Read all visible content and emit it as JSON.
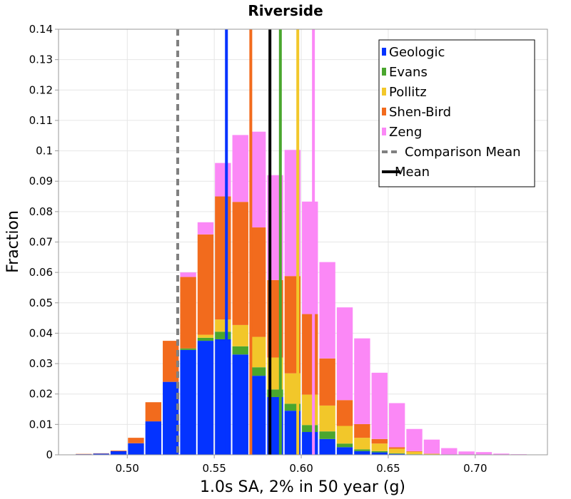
{
  "chart_data": {
    "type": "bar",
    "stacked": true,
    "title": "Riverside",
    "xlabel": "1.0s SA, 2% in 50 year (g)",
    "ylabel": "Fraction",
    "xlim": [
      0.4605,
      0.7415
    ],
    "ylim": [
      0,
      0.14
    ],
    "grid": true,
    "bin_width": 0.01,
    "x": [
      0.475,
      0.485,
      0.495,
      0.505,
      0.515,
      0.525,
      0.535,
      0.545,
      0.555,
      0.565,
      0.575,
      0.585,
      0.595,
      0.605,
      0.615,
      0.625,
      0.635,
      0.645,
      0.655,
      0.665,
      0.675,
      0.685,
      0.695,
      0.705,
      0.715,
      0.725
    ],
    "xticks": [
      0.5,
      0.55,
      0.6,
      0.65,
      0.7
    ],
    "xtick_labels": [
      "0.50",
      "0.55",
      "0.60",
      "0.65",
      "0.70"
    ],
    "yticks": [
      0,
      0.01,
      0.02,
      0.03,
      0.04,
      0.05,
      0.06,
      0.07,
      0.08,
      0.09,
      0.1,
      0.11,
      0.12,
      0.13,
      0.14
    ],
    "ytick_labels": [
      "0",
      "0.01",
      "0.02",
      "0.03",
      "0.04",
      "0.05",
      "0.06",
      "0.07",
      "0.08",
      "0.09",
      "0.1",
      "0.11",
      "0.12",
      "0.13",
      "0.14"
    ],
    "series": [
      {
        "name": "Geologic",
        "color": "#0433ff",
        "values": [
          0.0002,
          0.0004,
          0.0012,
          0.0038,
          0.011,
          0.024,
          0.0345,
          0.0375,
          0.038,
          0.033,
          0.026,
          0.019,
          0.0145,
          0.0075,
          0.0052,
          0.0025,
          0.0012,
          0.0008,
          0.0003,
          0.0001,
          0,
          0,
          0,
          0,
          0,
          0
        ]
      },
      {
        "name": "Evans",
        "color": "#4aa62e",
        "values": [
          0,
          0,
          0,
          0,
          0,
          0,
          0.0005,
          0.001,
          0.0025,
          0.0027,
          0.0028,
          0.0025,
          0.0023,
          0.0023,
          0.0025,
          0.0012,
          0.0006,
          0.0004,
          0.0002,
          0.0001,
          0,
          0,
          0,
          0,
          0,
          0
        ]
      },
      {
        "name": "Pollitz",
        "color": "#f2c72a",
        "values": [
          0,
          0,
          0,
          0,
          0,
          0,
          0,
          0.001,
          0.004,
          0.007,
          0.01,
          0.0105,
          0.01,
          0.01,
          0.0085,
          0.0058,
          0.0038,
          0.0025,
          0.0015,
          0.0008,
          0.0003,
          0.0001,
          0,
          0,
          0,
          0
        ]
      },
      {
        "name": "Shen-Bird",
        "color": "#f26b1d",
        "values": [
          0.0001,
          0.0001,
          0.0002,
          0.0018,
          0.0063,
          0.0135,
          0.0235,
          0.033,
          0.0405,
          0.0405,
          0.036,
          0.0255,
          0.032,
          0.0265,
          0.0155,
          0.0085,
          0.0045,
          0.0015,
          0.0005,
          0.0002,
          0.0001,
          0,
          0,
          0,
          0,
          0
        ]
      },
      {
        "name": "Zeng",
        "color": "#fb88f6",
        "values": [
          0,
          0,
          0,
          0,
          0,
          0,
          0.0015,
          0.004,
          0.011,
          0.022,
          0.0315,
          0.0345,
          0.0415,
          0.037,
          0.0317,
          0.0305,
          0.0282,
          0.0218,
          0.0145,
          0.0073,
          0.0046,
          0.0021,
          0.0011,
          0.0009,
          0.0004,
          0.0002
        ]
      }
    ],
    "vertical_lines": [
      {
        "name": "Comparison Mean",
        "x": 0.529,
        "color": "#808080",
        "style": "dashed"
      },
      {
        "name": "Mean",
        "x": 0.582,
        "color": "#000000",
        "style": "solid"
      },
      {
        "name": "Geologic mean",
        "x": 0.557,
        "color": "#0433ff",
        "style": "solid"
      },
      {
        "name": "Shen-Bird mean",
        "x": 0.571,
        "color": "#f26b1d",
        "style": "solid"
      },
      {
        "name": "Evans mean",
        "x": 0.588,
        "color": "#4aa62e",
        "style": "solid"
      },
      {
        "name": "Pollitz mean",
        "x": 0.598,
        "color": "#f2c72a",
        "style": "solid"
      },
      {
        "name": "Zeng mean",
        "x": 0.607,
        "color": "#fb88f6",
        "style": "solid"
      }
    ],
    "legend": {
      "position": "top-right",
      "entries": [
        {
          "label": "Geologic",
          "color": "#0433ff",
          "kind": "patch"
        },
        {
          "label": "Evans",
          "color": "#4aa62e",
          "kind": "patch"
        },
        {
          "label": "Pollitz",
          "color": "#f2c72a",
          "kind": "patch"
        },
        {
          "label": "Shen-Bird",
          "color": "#f26b1d",
          "kind": "patch"
        },
        {
          "label": "Zeng",
          "color": "#fb88f6",
          "kind": "patch"
        },
        {
          "label": "Comparison Mean",
          "color": "#808080",
          "kind": "dashed-line"
        },
        {
          "label": "Mean",
          "color": "#000000",
          "kind": "solid-line"
        }
      ]
    }
  }
}
